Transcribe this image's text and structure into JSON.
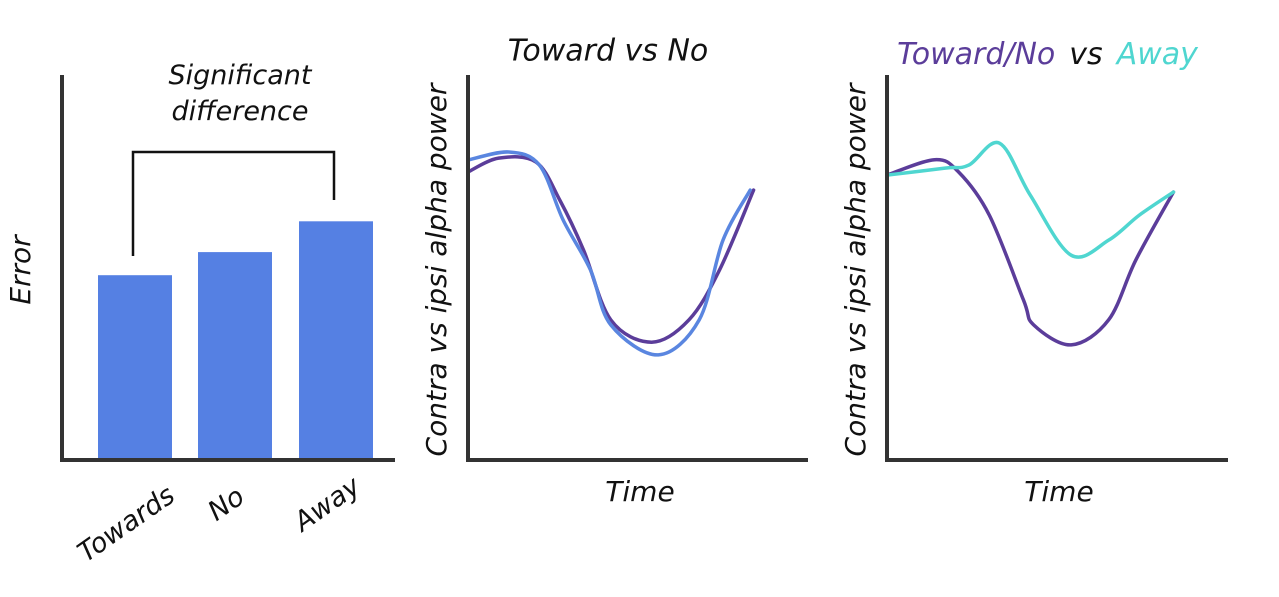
{
  "chart_data": [
    {
      "type": "bar",
      "ylabel": "Error",
      "annotation": "Significant difference",
      "categories": [
        "Towards",
        "No",
        "Away"
      ],
      "values": [
        48,
        54,
        62
      ],
      "color": "#5580e3",
      "ylim": [
        0,
        100
      ]
    },
    {
      "type": "line",
      "title": "Toward vs No",
      "xlabel": "Time",
      "ylabel": "Contra vs ipsi alpha power",
      "xlim": [
        0,
        100
      ],
      "ylim": [
        0,
        100
      ],
      "series": [
        {
          "color": "#5b3d9a",
          "x": [
            0,
            9,
            20,
            27,
            34,
            42,
            54,
            65,
            74,
            84
          ],
          "values": [
            74.8,
            78.4,
            77.4,
            67.5,
            54.5,
            36.4,
            30.6,
            36.4,
            49.4,
            70.1
          ]
        },
        {
          "color": "#5a86e0",
          "x": [
            0,
            12,
            21,
            28,
            36,
            42,
            56,
            68,
            75,
            83
          ],
          "values": [
            77.9,
            80,
            76.6,
            62.3,
            49.4,
            35.1,
            27.3,
            36.4,
            57.1,
            70.1
          ]
        }
      ]
    },
    {
      "type": "line",
      "title_parts": [
        "Toward/No",
        "vs",
        "Away"
      ],
      "xlabel": "Time",
      "ylabel": "Contra vs ipsi alpha power",
      "xlim": [
        0,
        100
      ],
      "ylim": [
        0,
        100
      ],
      "series": [
        {
          "color": "#5b3d9a",
          "x": [
            0,
            14,
            21,
            30,
            40,
            43,
            54,
            65,
            73,
            84
          ],
          "values": [
            74,
            78,
            74.8,
            63.6,
            41.6,
            35.1,
            29.9,
            36.4,
            52,
            69.6
          ]
        },
        {
          "color": "#4fd6d0",
          "x": [
            0,
            17,
            24,
            33,
            42,
            54,
            65,
            74,
            84
          ],
          "values": [
            74,
            75.8,
            76.6,
            82.3,
            68.8,
            53.2,
            57.1,
            63.6,
            69.6
          ]
        }
      ]
    }
  ]
}
